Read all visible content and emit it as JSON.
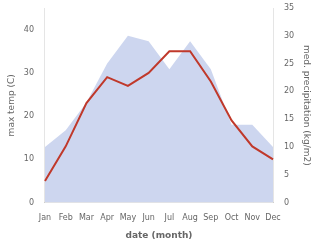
{
  "chart_data": {
    "type": "line",
    "xlabel": "date (month)",
    "ylabel": "max temp (C)",
    "y2label": "med. precipitation (kg/m2)",
    "categories": [
      "Jan",
      "Feb",
      "Mar",
      "Apr",
      "May",
      "Jun",
      "Jul",
      "Aug",
      "Sep",
      "Oct",
      "Nov",
      "Dec"
    ],
    "series": [
      {
        "type": "area",
        "axis": "y2",
        "color": "#b8c4e8",
        "values": [
          10,
          13,
          18,
          25,
          30,
          29,
          24,
          29,
          24,
          14,
          14,
          10
        ]
      },
      {
        "type": "line",
        "color": "#c0392b",
        "values": [
          5,
          13,
          23,
          29,
          27,
          30,
          35,
          35,
          28,
          19,
          13,
          10
        ]
      }
    ],
    "ylim": [
      0,
      45
    ],
    "yticks": [
      0,
      10,
      20,
      30,
      40
    ],
    "y2lim": [
      0,
      35
    ],
    "y2ticks": [
      0,
      5,
      10,
      15,
      20,
      25,
      30,
      35
    ],
    "grid": false
  }
}
